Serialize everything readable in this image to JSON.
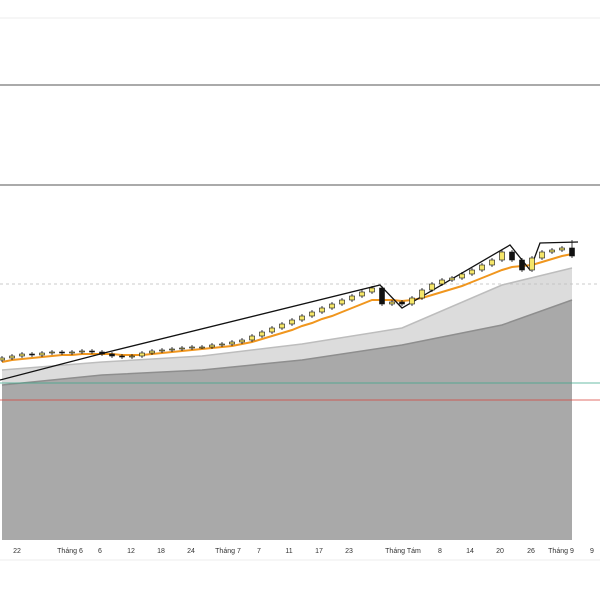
{
  "chart_data": {
    "type": "candlestick",
    "xlim": [
      -0.2,
      59.8
    ],
    "ylim": [
      0,
      400
    ],
    "xticks": [
      {
        "value": 1.5,
        "label": "22"
      },
      {
        "value": 6.8,
        "label": "Tháng 6"
      },
      {
        "value": 9.8,
        "label": "6"
      },
      {
        "value": 12.9,
        "label": "12"
      },
      {
        "value": 15.9,
        "label": "18"
      },
      {
        "value": 18.9,
        "label": "24"
      },
      {
        "value": 22.6,
        "label": "Tháng 7"
      },
      {
        "value": 25.7,
        "label": "7"
      },
      {
        "value": 28.7,
        "label": "11"
      },
      {
        "value": 31.7,
        "label": "17"
      },
      {
        "value": 34.7,
        "label": "23"
      },
      {
        "value": 40.1,
        "label": "Tháng Tám"
      },
      {
        "value": 43.8,
        "label": "8"
      },
      {
        "value": 46.8,
        "label": "14"
      },
      {
        "value": 49.8,
        "label": "20"
      },
      {
        "value": 52.9,
        "label": "26"
      },
      {
        "value": 55.9,
        "label": "Tháng 9"
      },
      {
        "value": 59,
        "label": "9"
      }
    ],
    "up_color": "#f5e66a",
    "down_color": "#111111",
    "open": [
      180,
      182,
      184,
      186,
      185,
      187,
      188,
      187,
      188,
      189,
      188,
      186,
      184,
      183,
      184,
      187,
      189,
      190,
      191,
      192,
      193,
      193,
      195,
      196,
      198,
      200,
      204,
      208,
      212,
      216,
      220,
      224,
      228,
      232,
      236,
      240,
      244,
      248,
      252,
      236,
      238,
      236,
      242,
      250,
      256,
      260,
      262,
      266,
      270,
      275,
      280,
      288,
      280,
      270,
      282,
      288,
      290,
      292
    ],
    "high": [
      184,
      186,
      188,
      188,
      189,
      190,
      190,
      190,
      191,
      191,
      190,
      188,
      186,
      186,
      189,
      191,
      192,
      193,
      194,
      195,
      195,
      197,
      198,
      200,
      202,
      206,
      210,
      214,
      218,
      222,
      226,
      230,
      234,
      238,
      242,
      246,
      250,
      254,
      254,
      240,
      240,
      244,
      252,
      258,
      262,
      264,
      268,
      272,
      277,
      282,
      290,
      290,
      282,
      284,
      290,
      292,
      294,
      300
    ],
    "low": [
      178,
      180,
      182,
      183,
      183,
      185,
      185,
      185,
      186,
      186,
      184,
      182,
      181,
      181,
      182,
      185,
      187,
      188,
      189,
      190,
      191,
      191,
      193,
      194,
      196,
      198,
      202,
      206,
      210,
      214,
      218,
      222,
      226,
      230,
      234,
      238,
      242,
      246,
      234,
      234,
      234,
      234,
      240,
      248,
      254,
      258,
      260,
      264,
      268,
      273,
      278,
      278,
      268,
      268,
      280,
      286,
      288,
      282
    ],
    "close": [
      182,
      184,
      186,
      185,
      187,
      188,
      187,
      188,
      189,
      188,
      186,
      184,
      183,
      184,
      187,
      189,
      190,
      191,
      192,
      193,
      193,
      195,
      196,
      198,
      200,
      204,
      208,
      212,
      216,
      220,
      224,
      228,
      232,
      236,
      240,
      244,
      248,
      252,
      236,
      238,
      236,
      242,
      250,
      256,
      260,
      262,
      266,
      270,
      275,
      280,
      288,
      280,
      270,
      282,
      288,
      290,
      292,
      284
    ],
    "ma": {
      "color": "#f0961e",
      "values": [
        178,
        180,
        181,
        182,
        183,
        184,
        185,
        185,
        186,
        186,
        186,
        186,
        185,
        185,
        185,
        186,
        187,
        188,
        189,
        190,
        191,
        192,
        193,
        194,
        196,
        198,
        201,
        204,
        207,
        210,
        214,
        217,
        221,
        224,
        228,
        232,
        236,
        240,
        240,
        240,
        239,
        240,
        242,
        245,
        248,
        251,
        254,
        258,
        262,
        266,
        270,
        273,
        274,
        275,
        278,
        281,
        284,
        286
      ]
    },
    "bands": [
      {
        "color": "#dcdcdc",
        "line": "#bdbdbd",
        "x": [
          0,
          10,
          20,
          30,
          40,
          50,
          57
        ],
        "values": [
          170,
          178,
          184,
          196,
          212,
          255,
          272
        ]
      },
      {
        "color": "#a9a9a9",
        "line": "#8e8e8e",
        "x": [
          0,
          10,
          20,
          30,
          40,
          50,
          57
        ],
        "values": [
          155,
          165,
          170,
          180,
          195,
          215,
          240
        ]
      }
    ],
    "zigzag": {
      "color": "#111111",
      "x": [
        -0.2,
        10.6,
        37.8,
        40,
        50.8,
        52.8,
        53.8,
        57.6
      ],
      "values": [
        160,
        188,
        255,
        232,
        295,
        270,
        297,
        298
      ]
    },
    "hlines": [
      {
        "value": 157,
        "color": "#3aa88a",
        "style": "solid"
      },
      {
        "value": 140,
        "color": "#d9403a",
        "style": "solid"
      },
      {
        "value": 256,
        "color": "#bbbbbb",
        "style": "dashed"
      }
    ]
  }
}
